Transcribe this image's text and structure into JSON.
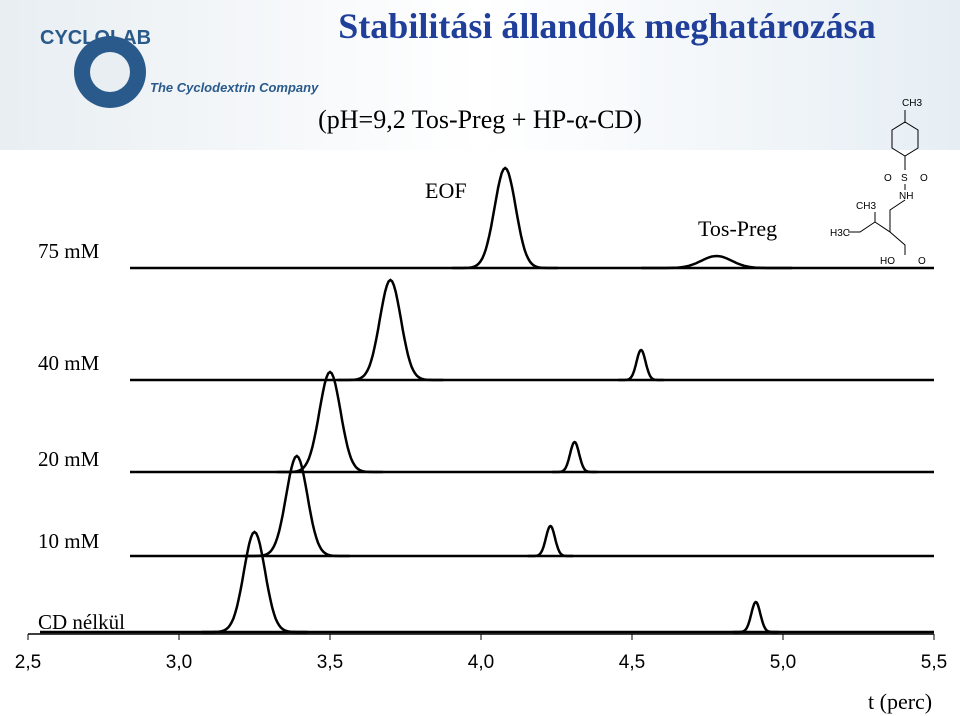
{
  "logo": {
    "name": "CYCLOLAB",
    "tagline": "The Cyclodextrin Company"
  },
  "structure_labels": [
    "CH3",
    "O",
    "S",
    "O",
    "NH",
    "CH3",
    "H3C",
    "HO",
    "O"
  ],
  "chart_data": {
    "type": "electropherogram",
    "title": "Stabilitási állandók meghatározása",
    "subtitle": "(pH=9,2 Tos-Preg + HP-α-CD)",
    "annotations": [
      "EOF",
      "Tos-Preg"
    ],
    "x_label": "t (perc)",
    "xlim": [
      2.5,
      5.5
    ],
    "xticks": [
      {
        "value": 2.5,
        "label": "2,5"
      },
      {
        "value": 3.0,
        "label": "3,0"
      },
      {
        "value": 3.5,
        "label": "3,5"
      },
      {
        "value": 4.0,
        "label": "4,0"
      },
      {
        "value": 4.5,
        "label": "4,5"
      },
      {
        "value": 5.0,
        "label": "5,0"
      },
      {
        "value": 5.5,
        "label": "5,5"
      }
    ],
    "color": "#000000",
    "series": [
      {
        "name": "75 mM",
        "peaks": [
          4.08,
          4.78
        ]
      },
      {
        "name": "40 mM",
        "peaks": [
          3.7,
          4.53
        ]
      },
      {
        "name": "20 mM",
        "peaks": [
          3.5,
          4.31
        ]
      },
      {
        "name": "10 mM",
        "peaks": [
          3.39,
          4.23
        ]
      },
      {
        "name": "CD nélkül",
        "peaks": [
          3.25,
          4.91
        ]
      }
    ]
  }
}
